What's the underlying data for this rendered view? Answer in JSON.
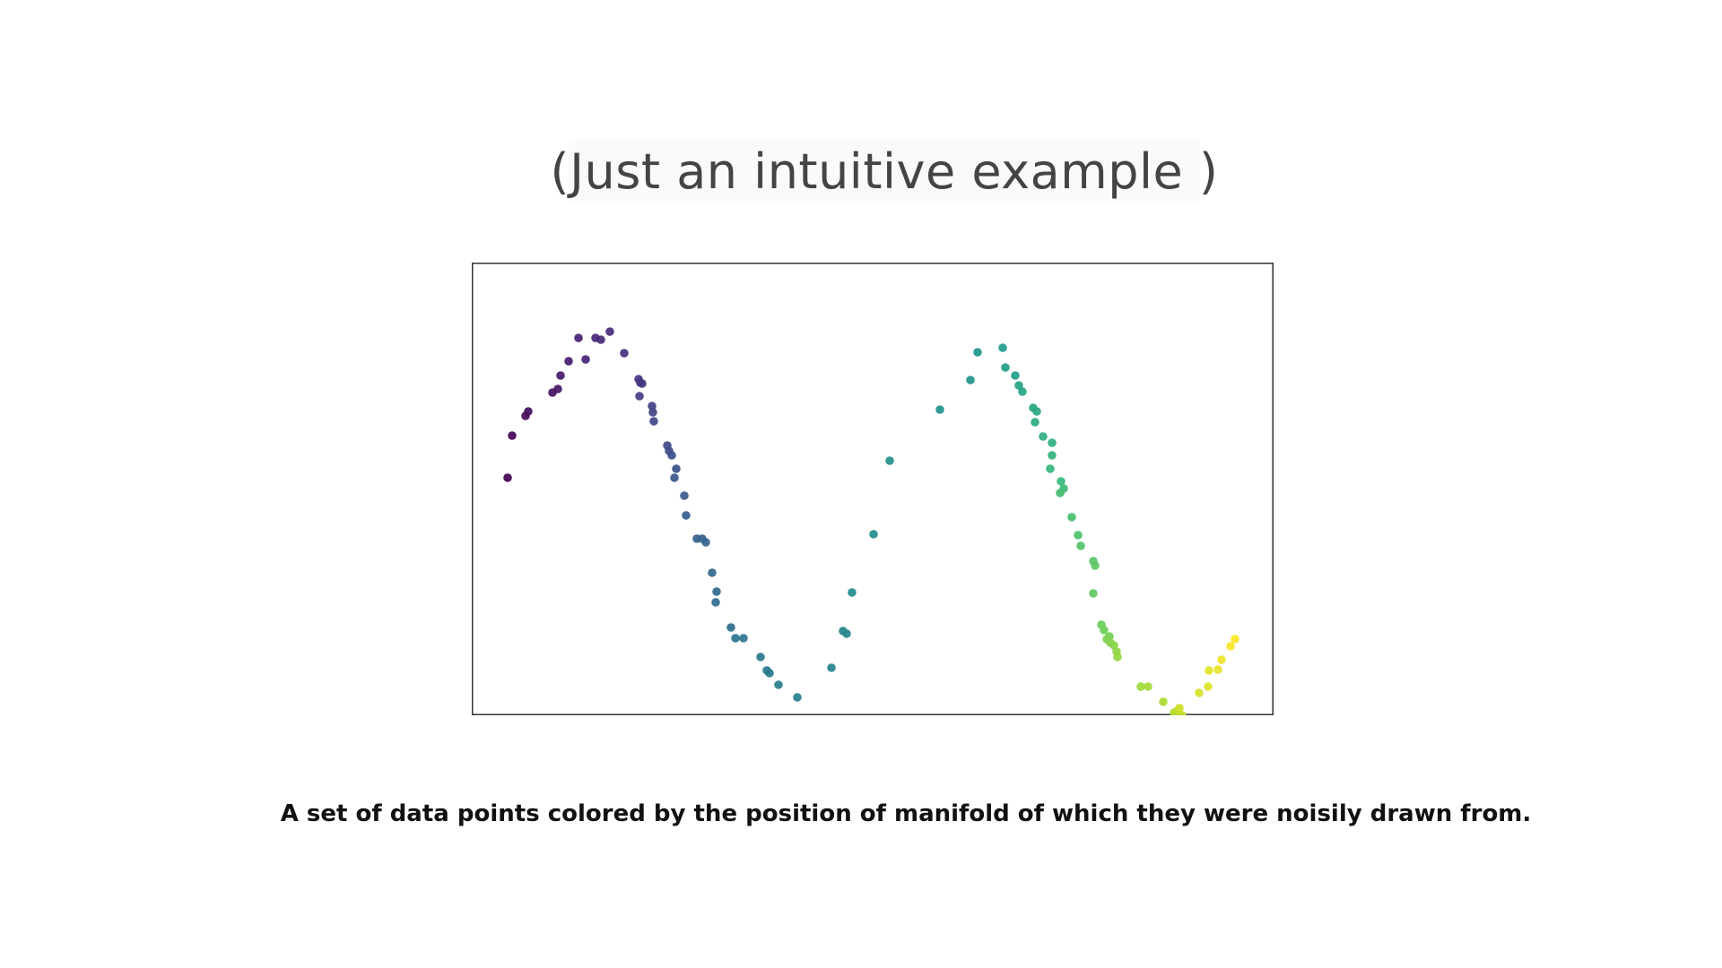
{
  "slide": {
    "title": "(Just an intuitive example )",
    "caption": "A set of data points colored by the position of manifold of which they were noisily drawn from."
  },
  "chart_data": {
    "type": "scatter",
    "title": "",
    "xlabel": "",
    "ylabel": "",
    "axes_ticks": false,
    "grid": false,
    "colormap": "viridis",
    "xlim": [
      0,
      894
    ],
    "ylim": [
      0,
      505
    ],
    "color_scale": [
      "#440154",
      "#482878",
      "#3e4989",
      "#31688e",
      "#26828e",
      "#1f9e89",
      "#35b779",
      "#6ece58",
      "#b5de2b",
      "#fde725"
    ],
    "points": [
      [
        40,
        240
      ],
      [
        45,
        193
      ],
      [
        60,
        171
      ],
      [
        63,
        166
      ],
      [
        90,
        145
      ],
      [
        96,
        141
      ],
      [
        99,
        126
      ],
      [
        108,
        110
      ],
      [
        119,
        84
      ],
      [
        127,
        108
      ],
      [
        138,
        84
      ],
      [
        144,
        86
      ],
      [
        154,
        77
      ],
      [
        170,
        101
      ],
      [
        186,
        130
      ],
      [
        188,
        134
      ],
      [
        190,
        135
      ],
      [
        187,
        149
      ],
      [
        201,
        160
      ],
      [
        202,
        167
      ],
      [
        203,
        177
      ],
      [
        218,
        204
      ],
      [
        220,
        210
      ],
      [
        223,
        215
      ],
      [
        228,
        230
      ],
      [
        226,
        240
      ],
      [
        237,
        260
      ],
      [
        239,
        282
      ],
      [
        251,
        308
      ],
      [
        257,
        308
      ],
      [
        261,
        312
      ],
      [
        268,
        346
      ],
      [
        273,
        367
      ],
      [
        272,
        379
      ],
      [
        289,
        407
      ],
      [
        294,
        419
      ],
      [
        303,
        419
      ],
      [
        322,
        440
      ],
      [
        329,
        455
      ],
      [
        332,
        458
      ],
      [
        342,
        471
      ],
      [
        363,
        485
      ],
      [
        401,
        452
      ],
      [
        414,
        411
      ],
      [
        418,
        414
      ],
      [
        424,
        368
      ],
      [
        448,
        303
      ],
      [
        466,
        221
      ],
      [
        522,
        164
      ],
      [
        556,
        131
      ],
      [
        564,
        100
      ],
      [
        592,
        95
      ],
      [
        595,
        117
      ],
      [
        606,
        126
      ],
      [
        610,
        137
      ],
      [
        614,
        144
      ],
      [
        626,
        162
      ],
      [
        630,
        166
      ],
      [
        628,
        178
      ],
      [
        637,
        194
      ],
      [
        647,
        201
      ],
      [
        647,
        215
      ],
      [
        645,
        230
      ],
      [
        657,
        244
      ],
      [
        660,
        252
      ],
      [
        656,
        257
      ],
      [
        669,
        284
      ],
      [
        676,
        304
      ],
      [
        679,
        316
      ],
      [
        693,
        333
      ],
      [
        695,
        338
      ],
      [
        693,
        369
      ],
      [
        702,
        404
      ],
      [
        705,
        410
      ],
      [
        711,
        417
      ],
      [
        708,
        420
      ],
      [
        712,
        424
      ],
      [
        716,
        427
      ],
      [
        719,
        434
      ],
      [
        720,
        440
      ],
      [
        746,
        473
      ],
      [
        754,
        473
      ],
      [
        771,
        490
      ],
      [
        783,
        502
      ],
      [
        784,
        510
      ],
      [
        787,
        500
      ],
      [
        792,
        505
      ],
      [
        789,
        497
      ],
      [
        811,
        480
      ],
      [
        821,
        473
      ],
      [
        822,
        455
      ],
      [
        832,
        454
      ],
      [
        836,
        443
      ],
      [
        846,
        428
      ],
      [
        851,
        420
      ]
    ]
  }
}
